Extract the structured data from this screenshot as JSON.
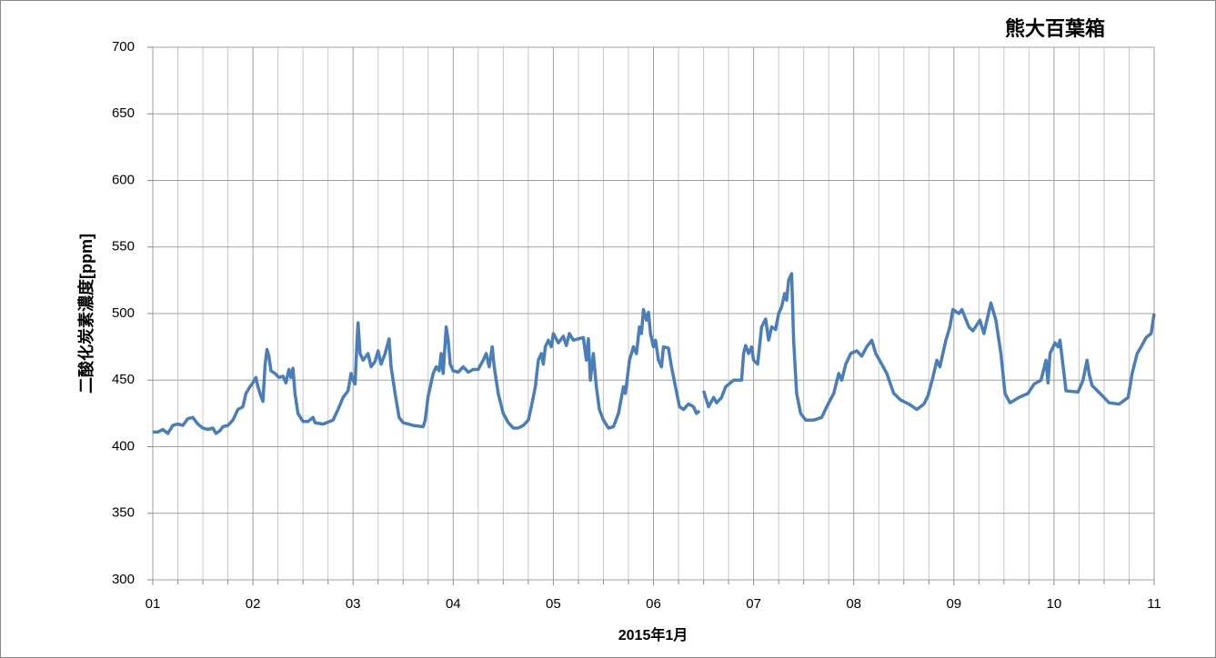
{
  "chart_data": {
    "type": "line",
    "title": "熊大百葉箱",
    "ylabel": "二酸化炭素濃度[ppm]",
    "xlabel": "2015年1月",
    "color": "#4a7ebb",
    "grid": true,
    "x_minor_divisions": 4,
    "xlim": [
      1,
      11
    ],
    "ylim": [
      300,
      700
    ],
    "xticks": [
      {
        "value": 1,
        "label": "01"
      },
      {
        "value": 2,
        "label": "02"
      },
      {
        "value": 3,
        "label": "03"
      },
      {
        "value": 4,
        "label": "04"
      },
      {
        "value": 5,
        "label": "05"
      },
      {
        "value": 6,
        "label": "06"
      },
      {
        "value": 7,
        "label": "07"
      },
      {
        "value": 8,
        "label": "08"
      },
      {
        "value": 9,
        "label": "09"
      },
      {
        "value": 10,
        "label": "10"
      },
      {
        "value": 11,
        "label": "11"
      }
    ],
    "yticks": [
      300,
      350,
      400,
      450,
      500,
      550,
      600,
      650,
      700
    ],
    "x": [
      1.0,
      1.05,
      1.1,
      1.15,
      1.2,
      1.25,
      1.3,
      1.35,
      1.4,
      1.45,
      1.5,
      1.55,
      1.6,
      1.63,
      1.67,
      1.7,
      1.75,
      1.8,
      1.85,
      1.9,
      1.93,
      1.97,
      2.0,
      2.03,
      2.05,
      2.08,
      2.1,
      2.12,
      2.14,
      2.16,
      2.18,
      2.22,
      2.26,
      2.3,
      2.33,
      2.36,
      2.38,
      2.4,
      2.42,
      2.45,
      2.5,
      2.55,
      2.6,
      2.62,
      2.7,
      2.8,
      2.85,
      2.9,
      2.95,
      2.98,
      3.0,
      3.02,
      3.04,
      3.05,
      3.07,
      3.1,
      3.15,
      3.18,
      3.22,
      3.25,
      3.28,
      3.32,
      3.36,
      3.38,
      3.42,
      3.46,
      3.5,
      3.6,
      3.7,
      3.72,
      3.75,
      3.8,
      3.83,
      3.86,
      3.88,
      3.9,
      3.93,
      3.95,
      3.97,
      4.0,
      4.05,
      4.1,
      4.15,
      4.2,
      4.25,
      4.3,
      4.33,
      4.36,
      4.39,
      4.41,
      4.45,
      4.5,
      4.55,
      4.6,
      4.65,
      4.7,
      4.75,
      4.78,
      4.82,
      4.85,
      4.88,
      4.9,
      4.92,
      4.95,
      4.98,
      5.0,
      5.05,
      5.1,
      5.13,
      5.16,
      5.2,
      5.25,
      5.3,
      5.33,
      5.35,
      5.37,
      5.4,
      5.43,
      5.46,
      5.5,
      5.55,
      5.6,
      5.65,
      5.7,
      5.72,
      5.76,
      5.8,
      5.83,
      5.86,
      5.88,
      5.9,
      5.93,
      5.95,
      5.97,
      6.0,
      6.02,
      6.05,
      6.08,
      6.1,
      6.15,
      6.18,
      6.22,
      6.26,
      6.3,
      6.35,
      6.4,
      6.43,
      6.46,
      6.48,
      6.5,
      6.52,
      6.55,
      6.6,
      6.63,
      6.68,
      6.72,
      6.8,
      6.88,
      6.9,
      6.92,
      6.95,
      6.98,
      7.0,
      7.04,
      7.08,
      7.12,
      7.15,
      7.18,
      7.22,
      7.25,
      7.28,
      7.31,
      7.33,
      7.35,
      7.38,
      7.4,
      7.43,
      7.47,
      7.52,
      7.6,
      7.68,
      7.73,
      7.8,
      7.85,
      7.88,
      7.92,
      7.97,
      8.03,
      8.08,
      8.13,
      8.18,
      8.22,
      8.28,
      8.33,
      8.4,
      8.47,
      8.55,
      8.63,
      8.7,
      8.74,
      8.79,
      8.83,
      8.86,
      8.92,
      8.96,
      8.99,
      9.05,
      9.08,
      9.15,
      9.19,
      9.26,
      9.3,
      9.37,
      9.42,
      9.47,
      9.51,
      9.56,
      9.65,
      9.74,
      9.8,
      9.87,
      9.92,
      9.94,
      9.96,
      10.01,
      10.04,
      10.06,
      10.12,
      10.24,
      10.29,
      10.33,
      10.35,
      10.38,
      10.46,
      10.55,
      10.65,
      10.74,
      10.78,
      10.83,
      10.87,
      10.92,
      10.97,
      11.0
    ],
    "values": [
      411,
      411,
      413,
      410,
      416,
      417,
      416,
      421,
      422,
      417,
      414,
      413,
      414,
      410,
      412,
      415,
      416,
      420,
      428,
      430,
      440,
      445,
      448,
      452,
      445,
      438,
      434,
      460,
      473,
      468,
      457,
      455,
      452,
      453,
      448,
      458,
      452,
      459,
      440,
      425,
      419,
      419,
      422,
      418,
      417,
      420,
      428,
      437,
      442,
      455,
      450,
      447,
      480,
      493,
      470,
      465,
      470,
      460,
      464,
      472,
      462,
      470,
      481,
      460,
      440,
      422,
      418,
      416,
      415,
      420,
      438,
      455,
      460,
      457,
      470,
      455,
      490,
      480,
      462,
      457,
      456,
      460,
      456,
      458,
      458,
      465,
      470,
      460,
      475,
      460,
      440,
      425,
      418,
      414,
      414,
      416,
      420,
      430,
      445,
      465,
      470,
      462,
      475,
      480,
      475,
      485,
      478,
      483,
      476,
      485,
      480,
      481,
      482,
      465,
      481,
      450,
      470,
      445,
      428,
      420,
      414,
      415,
      425,
      445,
      440,
      465,
      475,
      470,
      490,
      485,
      503,
      495,
      501,
      485,
      475,
      480,
      465,
      460,
      475,
      474,
      460,
      445,
      430,
      428,
      432,
      430,
      425,
      427,
      null,
      442,
      437,
      430,
      437,
      433,
      437,
      445,
      450,
      450,
      470,
      476,
      470,
      475,
      465,
      462,
      490,
      496,
      480,
      490,
      488,
      500,
      505,
      515,
      510,
      525,
      530,
      480,
      440,
      425,
      420,
      420,
      422,
      430,
      440,
      455,
      450,
      462,
      470,
      472,
      468,
      475,
      480,
      470,
      462,
      455,
      440,
      435,
      432,
      428,
      432,
      438,
      452,
      465,
      460,
      480,
      490,
      503,
      500,
      503,
      490,
      487,
      495,
      485,
      508,
      495,
      470,
      440,
      433,
      437,
      440,
      447,
      450,
      465,
      448,
      470,
      478,
      475,
      480,
      442,
      441,
      450,
      465,
      455,
      446,
      440,
      433,
      432,
      437,
      455,
      470,
      475,
      482,
      485,
      500
    ]
  }
}
